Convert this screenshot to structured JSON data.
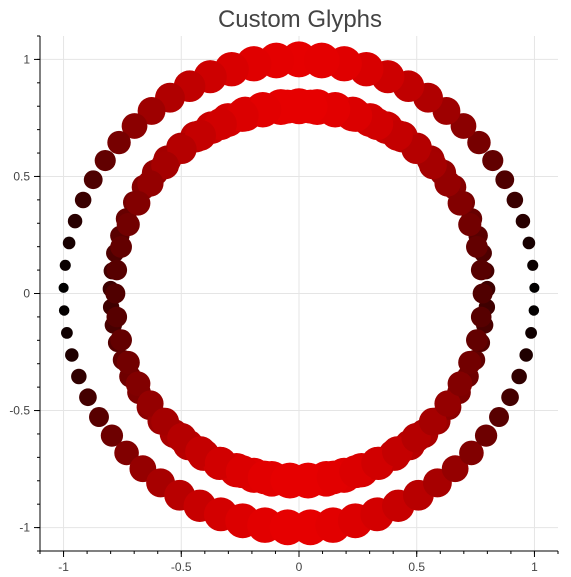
{
  "chart_data": {
    "type": "scatter",
    "title": "Custom Glyphs",
    "xlabel": "",
    "ylabel": "",
    "xlim": [
      -1.1,
      1.1
    ],
    "ylim": [
      -1.1,
      1.1
    ],
    "grid": true,
    "x_ticks": [
      {
        "value": -1,
        "label": "-1"
      },
      {
        "value": -0.5,
        "label": "-0.5"
      },
      {
        "value": 0,
        "label": "0"
      },
      {
        "value": 0.5,
        "label": "0.5"
      },
      {
        "value": 1,
        "label": "1"
      }
    ],
    "y_ticks": [
      {
        "value": 1,
        "label": "1"
      },
      {
        "value": 0.5,
        "label": "0.5"
      },
      {
        "value": 0,
        "label": "0"
      },
      {
        "value": -0.5,
        "label": "-0.5"
      },
      {
        "value": -1,
        "label": "-1"
      }
    ],
    "rings": [
      {
        "center_x": 0,
        "center_y": 0,
        "radius_x": 0.8,
        "radius_y": 0.8,
        "count": 65,
        "start_angle_deg": 90,
        "size_min": 8,
        "size_max": 18,
        "color_max": "#e60000",
        "color_min": "#3c0000"
      },
      {
        "center_x": 0,
        "center_y": 0,
        "radius_x": 1.0,
        "radius_y": 1.0,
        "count": 65,
        "start_angle_deg": 90,
        "size_min": 5,
        "size_max": 18,
        "color_max": "#e60000",
        "color_min": "#000000"
      },
      {
        "center_x": 0,
        "center_y": 0,
        "radius_x": 0.78,
        "radius_y": 0.8,
        "count": 50,
        "start_angle_deg": 0,
        "size_min": 10,
        "size_max": 17,
        "color_max": "#e60000",
        "color_min": "#500000"
      }
    ]
  }
}
